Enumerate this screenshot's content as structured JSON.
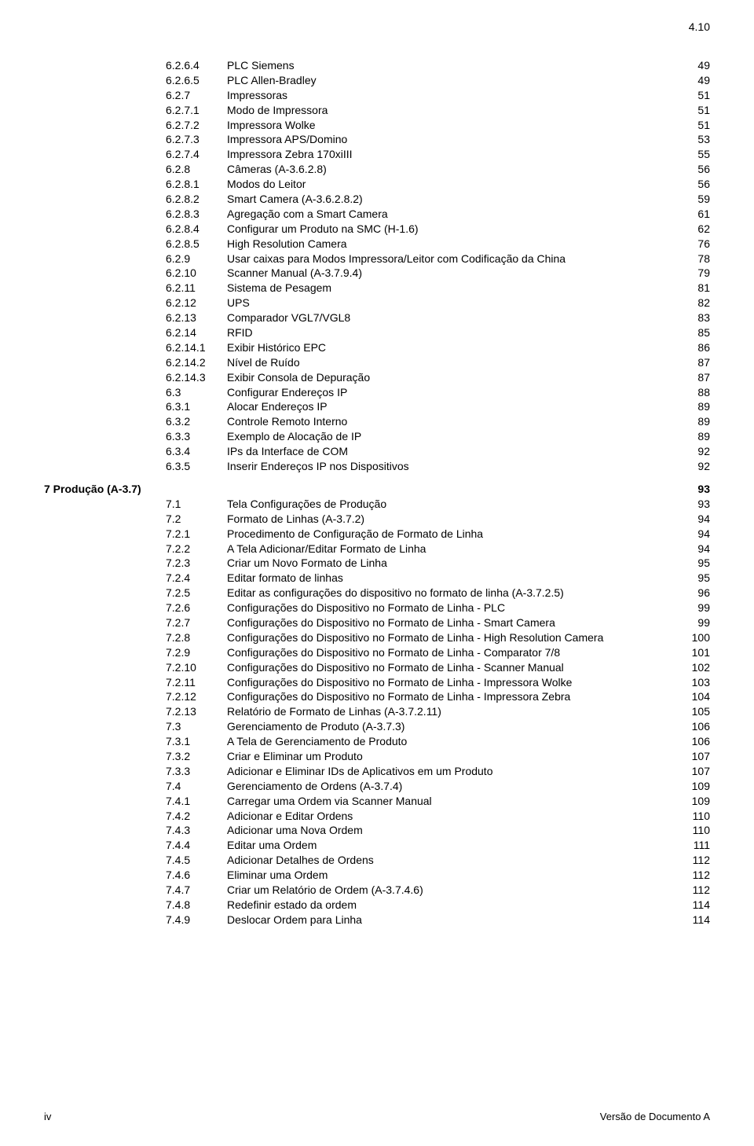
{
  "header": {
    "section_number": "4.10"
  },
  "toc": {
    "groups": [
      {
        "chapter": "",
        "is_section": false,
        "rows": [
          {
            "num": "6.2.6.4",
            "title": "PLC Siemens",
            "pg": "49"
          },
          {
            "num": "6.2.6.5",
            "title": "PLC Allen-Bradley",
            "pg": "49"
          },
          {
            "num": "6.2.7",
            "title": "Impressoras",
            "pg": "51"
          },
          {
            "num": "6.2.7.1",
            "title": "Modo de Impressora",
            "pg": "51"
          },
          {
            "num": "6.2.7.2",
            "title": "Impressora Wolke",
            "pg": "51"
          },
          {
            "num": "6.2.7.3",
            "title": "Impressora APS/Domino",
            "pg": "53"
          },
          {
            "num": "6.2.7.4",
            "title": "Impressora Zebra 170xiIII",
            "pg": "55"
          },
          {
            "num": "6.2.8",
            "title": "Câmeras (A-3.6.2.8)",
            "pg": "56"
          },
          {
            "num": "6.2.8.1",
            "title": "Modos do Leitor",
            "pg": "56"
          },
          {
            "num": "6.2.8.2",
            "title": "Smart Camera (A-3.6.2.8.2)",
            "pg": "59"
          },
          {
            "num": "6.2.8.3",
            "title": "Agregação com a Smart Camera",
            "pg": "61"
          },
          {
            "num": "6.2.8.4",
            "title": "Configurar um Produto na SMC (H-1.6)",
            "pg": "62"
          },
          {
            "num": "6.2.8.5",
            "title": "High Resolution Camera",
            "pg": "76"
          },
          {
            "num": "6.2.9",
            "title": "Usar caixas para Modos Impressora/Leitor com Codificação da China",
            "pg": "78"
          },
          {
            "num": "6.2.10",
            "title": "Scanner Manual (A-3.7.9.4)",
            "pg": "79"
          },
          {
            "num": "6.2.11",
            "title": "Sistema de Pesagem",
            "pg": "81"
          },
          {
            "num": "6.2.12",
            "title": "UPS",
            "pg": "82"
          },
          {
            "num": "6.2.13",
            "title": "Comparador VGL7/VGL8",
            "pg": "83"
          },
          {
            "num": "6.2.14",
            "title": "RFID",
            "pg": "85"
          },
          {
            "num": "6.2.14.1",
            "title": "Exibir Histórico EPC",
            "pg": "86"
          },
          {
            "num": "6.2.14.2",
            "title": "Nível de Ruído",
            "pg": "87"
          },
          {
            "num": "6.2.14.3",
            "title": "Exibir Consola de Depuração",
            "pg": "87"
          },
          {
            "num": "6.3",
            "title": "Configurar Endereços IP",
            "pg": "88"
          },
          {
            "num": "6.3.1",
            "title": "Alocar Endereços IP",
            "pg": "89"
          },
          {
            "num": "6.3.2",
            "title": "Controle Remoto Interno",
            "pg": "89"
          },
          {
            "num": "6.3.3",
            "title": "Exemplo de Alocação de IP",
            "pg": "89"
          },
          {
            "num": "6.3.4",
            "title": "IPs da Interface de COM",
            "pg": "92"
          },
          {
            "num": "6.3.5",
            "title": "Inserir Endereços IP nos Dispositivos",
            "pg": "92"
          }
        ]
      },
      {
        "chapter": "7  Produção (A-3.7)",
        "chapter_pg": "93",
        "is_section": true,
        "rows": [
          {
            "num": "7.1",
            "title": "Tela Configurações de Produção",
            "pg": "93"
          },
          {
            "num": "7.2",
            "title": "Formato de Linhas (A-3.7.2)",
            "pg": "94"
          },
          {
            "num": "7.2.1",
            "title": "Procedimento de Configuração de Formato de Linha",
            "pg": "94"
          },
          {
            "num": "7.2.2",
            "title": "A Tela Adicionar/Editar Formato de Linha",
            "pg": "94"
          },
          {
            "num": "7.2.3",
            "title": "Criar um Novo Formato de Linha",
            "pg": "95"
          },
          {
            "num": "7.2.4",
            "title": "Editar formato de linhas",
            "pg": "95"
          },
          {
            "num": "7.2.5",
            "title": "Editar as configurações do dispositivo no formato de linha (A-3.7.2.5)",
            "pg": "96"
          },
          {
            "num": "7.2.6",
            "title": "Configurações do Dispositivo no Formato de Linha - PLC",
            "pg": "99"
          },
          {
            "num": "7.2.7",
            "title": "Configurações do Dispositivo no Formato de Linha - Smart Camera",
            "pg": "99"
          },
          {
            "num": "7.2.8",
            "title": "Configurações do Dispositivo no Formato de Linha - High Resolution Camera",
            "pg": "100"
          },
          {
            "num": "7.2.9",
            "title": "Configurações do Dispositivo no Formato de Linha - Comparator 7/8",
            "pg": "101"
          },
          {
            "num": "7.2.10",
            "title": "Configurações do Dispositivo no Formato de Linha - Scanner Manual",
            "pg": "102"
          },
          {
            "num": "7.2.11",
            "title": "Configurações do Dispositivo no Formato de Linha - Impressora Wolke",
            "pg": "103"
          },
          {
            "num": "7.2.12",
            "title": "Configurações do Dispositivo no Formato de Linha - Impressora Zebra",
            "pg": "104"
          },
          {
            "num": "7.2.13",
            "title": "Relatório de Formato de Linhas (A-3.7.2.11)",
            "pg": "105"
          },
          {
            "num": "7.3",
            "title": "Gerenciamento de Produto (A-3.7.3)",
            "pg": "106"
          },
          {
            "num": "7.3.1",
            "title": "A Tela de Gerenciamento de Produto",
            "pg": "106"
          },
          {
            "num": "7.3.2",
            "title": "Criar e Eliminar um Produto",
            "pg": "107"
          },
          {
            "num": "7.3.3",
            "title": "Adicionar e Eliminar IDs de Aplicativos em um Produto",
            "pg": "107"
          },
          {
            "num": "7.4",
            "title": "Gerenciamento de Ordens (A-3.7.4)",
            "pg": "109"
          },
          {
            "num": "7.4.1",
            "title": "Carregar uma Ordem via Scanner Manual",
            "pg": "109"
          },
          {
            "num": "7.4.2",
            "title": "Adicionar e Editar Ordens",
            "pg": "110"
          },
          {
            "num": "7.4.3",
            "title": "Adicionar uma Nova Ordem",
            "pg": "110"
          },
          {
            "num": "7.4.4",
            "title": "Editar uma Ordem",
            "pg": "111"
          },
          {
            "num": "7.4.5",
            "title": "Adicionar Detalhes de Ordens",
            "pg": "112"
          },
          {
            "num": "7.4.6",
            "title": "Eliminar uma Ordem",
            "pg": "112"
          },
          {
            "num": "7.4.7",
            "title": "Criar um Relatório de Ordem (A-3.7.4.6)",
            "pg": "112"
          },
          {
            "num": "7.4.8",
            "title": "Redefinir estado da ordem",
            "pg": "114"
          },
          {
            "num": "7.4.9",
            "title": "Deslocar Ordem para Linha",
            "pg": "114"
          }
        ]
      }
    ]
  },
  "footer": {
    "left": "iv",
    "right": "Versão de Documento A"
  }
}
